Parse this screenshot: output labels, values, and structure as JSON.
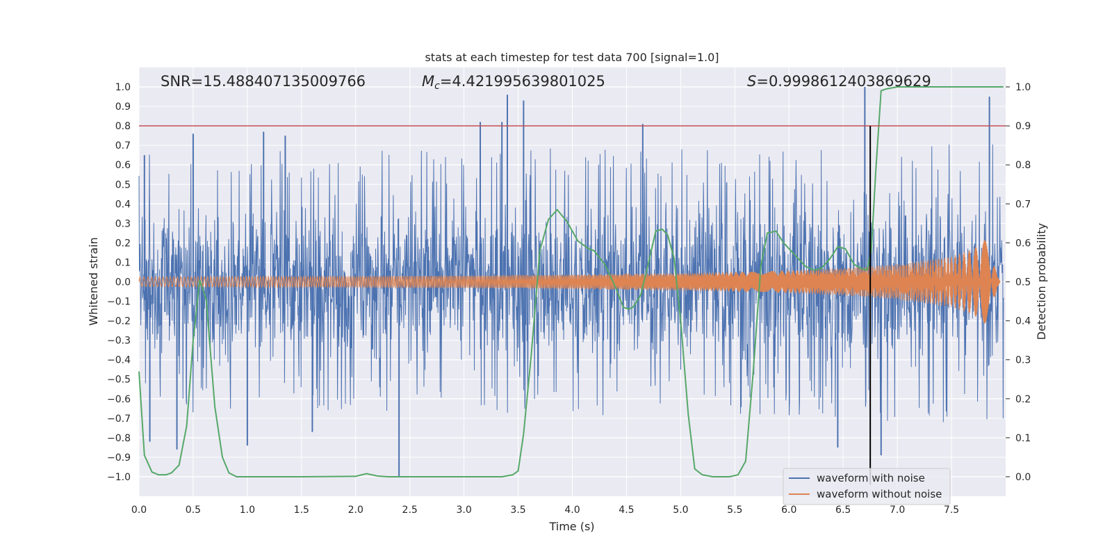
{
  "chart_data": {
    "type": "line",
    "title": "stats at each timestep for test data 700 [signal=1.0]",
    "xlabel": "Time (s)",
    "ylabel": "Whitened strain",
    "y2label": "Detection probability",
    "xlim": [
      0.0,
      8.0
    ],
    "ylim": [
      -1.1,
      1.1
    ],
    "y2lim": [
      -0.05,
      1.05
    ],
    "x_ticks": [
      "0.0",
      "0.5",
      "1.0",
      "1.5",
      "2.0",
      "2.5",
      "3.0",
      "3.5",
      "4.0",
      "4.5",
      "5.0",
      "5.5",
      "6.0",
      "6.5",
      "7.0",
      "7.5"
    ],
    "y_ticks": [
      "1.0",
      "0.9",
      "0.8",
      "0.7",
      "0.6",
      "0.5",
      "0.4",
      "0.3",
      "0.2",
      "0.1",
      "0.0",
      "−0.1",
      "−0.2",
      "−0.3",
      "−0.4",
      "−0.5",
      "−0.6",
      "−0.7",
      "−0.8",
      "−0.9",
      "−1.0"
    ],
    "y2_ticks": [
      "1.0",
      "0.9",
      "0.8",
      "0.7",
      "0.6",
      "0.5",
      "0.4",
      "0.3",
      "0.2",
      "0.1",
      "0.0"
    ],
    "annotations": {
      "snr": "SNR=15.488407135009766",
      "mc_symbol": "M",
      "mc_sub": "c",
      "mc_value": "=4.421995639801025",
      "s_symbol": "S",
      "s_value": "=0.9998612403869629"
    },
    "threshold_y": 0.8,
    "detection_time": 6.75,
    "noisy_envelope": {
      "x": [
        0.0,
        1.0,
        2.0,
        3.0,
        4.0,
        5.0,
        6.0,
        7.0,
        7.9
      ],
      "amplitude": [
        0.45,
        0.45,
        0.45,
        0.46,
        0.46,
        0.46,
        0.47,
        0.48,
        0.5
      ],
      "end_time": 7.98
    },
    "noisy_spikes": [
      {
        "x": 0.05,
        "y": 0.65
      },
      {
        "x": 0.1,
        "y": -0.82
      },
      {
        "x": 0.35,
        "y": -0.86
      },
      {
        "x": 0.5,
        "y": 0.76
      },
      {
        "x": 1.0,
        "y": -0.84
      },
      {
        "x": 1.15,
        "y": 0.77
      },
      {
        "x": 1.35,
        "y": 0.75
      },
      {
        "x": 1.6,
        "y": -0.77
      },
      {
        "x": 2.4,
        "y": -1.0
      },
      {
        "x": 3.15,
        "y": 0.82
      },
      {
        "x": 3.35,
        "y": 0.82
      },
      {
        "x": 3.4,
        "y": 0.96
      },
      {
        "x": 3.55,
        "y": 0.93
      },
      {
        "x": 4.65,
        "y": 0.81
      },
      {
        "x": 6.7,
        "y": 1.0
      },
      {
        "x": 6.85,
        "y": -0.89
      },
      {
        "x": 7.85,
        "y": 0.95
      },
      {
        "x": 6.45,
        "y": -0.85
      }
    ],
    "series": [
      {
        "name": "waveform with noise",
        "color": "#4c72b0"
      },
      {
        "name": "waveform without noise",
        "color": "#dd8452",
        "envelope_x": [
          0.0,
          1.0,
          2.0,
          3.0,
          4.0,
          5.0,
          5.5,
          6.0,
          6.5,
          7.0,
          7.5,
          7.7,
          7.8,
          7.85,
          7.88,
          7.9,
          7.92,
          7.95
        ],
        "envelope_y": [
          0.025,
          0.027,
          0.029,
          0.032,
          0.037,
          0.045,
          0.05,
          0.058,
          0.07,
          0.09,
          0.13,
          0.17,
          0.21,
          0.25,
          0.33,
          0.18,
          0.05,
          0.0
        ]
      },
      {
        "name": "detection probability",
        "color": "#55a868",
        "x": [
          0.0,
          0.05,
          0.12,
          0.18,
          0.25,
          0.3,
          0.37,
          0.44,
          0.5,
          0.56,
          0.62,
          0.7,
          0.77,
          0.83,
          0.9,
          1.0,
          1.5,
          2.0,
          2.1,
          2.2,
          2.3,
          3.0,
          3.35,
          3.45,
          3.5,
          3.55,
          3.62,
          3.7,
          3.78,
          3.86,
          3.95,
          4.05,
          4.15,
          4.2,
          4.3,
          4.4,
          4.47,
          4.52,
          4.56,
          4.63,
          4.7,
          4.77,
          4.83,
          4.88,
          4.94,
          5.0,
          5.07,
          5.13,
          5.2,
          5.3,
          5.45,
          5.53,
          5.6,
          5.67,
          5.74,
          5.8,
          5.88,
          5.95,
          6.05,
          6.15,
          6.23,
          6.3,
          6.38,
          6.45,
          6.52,
          6.6,
          6.66,
          6.72,
          6.76,
          6.8,
          6.85,
          6.9,
          7.0,
          7.5,
          7.98
        ],
        "y": [
          0.27,
          0.055,
          0.012,
          0.005,
          0.005,
          0.01,
          0.03,
          0.13,
          0.35,
          0.505,
          0.455,
          0.18,
          0.05,
          0.01,
          0.0,
          0.0,
          0.0,
          0.001,
          0.008,
          0.002,
          0.0,
          0.0,
          0.0,
          0.005,
          0.015,
          0.11,
          0.31,
          0.58,
          0.66,
          0.685,
          0.655,
          0.605,
          0.585,
          0.58,
          0.545,
          0.485,
          0.435,
          0.43,
          0.435,
          0.465,
          0.545,
          0.63,
          0.635,
          0.62,
          0.56,
          0.4,
          0.16,
          0.02,
          0.005,
          0.0,
          0.0,
          0.005,
          0.04,
          0.27,
          0.54,
          0.625,
          0.63,
          0.6,
          0.57,
          0.54,
          0.53,
          0.535,
          0.56,
          0.59,
          0.585,
          0.545,
          0.535,
          0.53,
          0.58,
          0.78,
          0.99,
          0.995,
          1.0,
          1.0,
          1.0
        ]
      }
    ],
    "legend_position": "lower-right"
  }
}
